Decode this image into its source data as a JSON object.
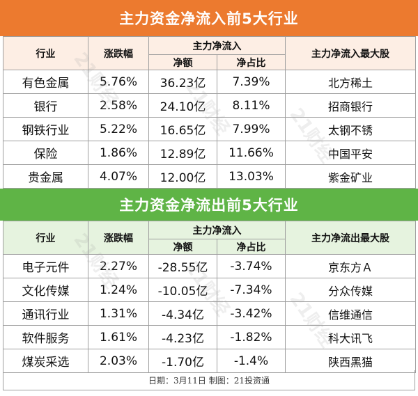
{
  "inflow": {
    "title": "主力资金净流入前5大行业",
    "headers": {
      "industry": "行业",
      "change": "涨跌幅",
      "flow_group": "主力净流入",
      "net": "净额",
      "ratio": "净占比",
      "top_stock": "主力净流入最大股"
    },
    "rows": [
      {
        "industry": "有色金属",
        "change": "5.76%",
        "net": "36.23亿",
        "ratio": "7.39%",
        "stock": "北方稀土"
      },
      {
        "industry": "银行",
        "change": "2.58%",
        "net": "24.10亿",
        "ratio": "8.11%",
        "stock": "招商银行"
      },
      {
        "industry": "钢铁行业",
        "change": "5.22%",
        "net": "16.65亿",
        "ratio": "7.99%",
        "stock": "太钢不锈"
      },
      {
        "industry": "保险",
        "change": "1.86%",
        "net": "12.89亿",
        "ratio": "11.66%",
        "stock": "中国平安"
      },
      {
        "industry": "贵金属",
        "change": "4.07%",
        "net": "12.00亿",
        "ratio": "13.03%",
        "stock": "紫金矿业"
      }
    ]
  },
  "outflow": {
    "title": "主力资金净流出前5大行业",
    "headers": {
      "industry": "行业",
      "change": "涨跌幅",
      "flow_group": "主力净流入",
      "net": "净额",
      "ratio": "净占比",
      "top_stock": "主力净流出最大股"
    },
    "rows": [
      {
        "industry": "电子元件",
        "change": "2.27%",
        "net": "-28.55亿",
        "ratio": "-3.74%",
        "stock": "京东方Ａ"
      },
      {
        "industry": "文化传媒",
        "change": "1.24%",
        "net": "-10.05亿",
        "ratio": "-7.34%",
        "stock": "分众传媒"
      },
      {
        "industry": "通讯行业",
        "change": "1.31%",
        "net": "-4.34亿",
        "ratio": "-3.42%",
        "stock": "信维通信"
      },
      {
        "industry": "软件服务",
        "change": "1.61%",
        "net": "-4.23亿",
        "ratio": "-1.82%",
        "stock": "科大讯飞"
      },
      {
        "industry": "煤炭采选",
        "change": "2.03%",
        "net": "-1.70亿",
        "ratio": "-1.4%",
        "stock": "陕西黑猫"
      }
    ]
  },
  "footer": "日期：3月11日 制图：21投资通",
  "watermark": "21财经"
}
